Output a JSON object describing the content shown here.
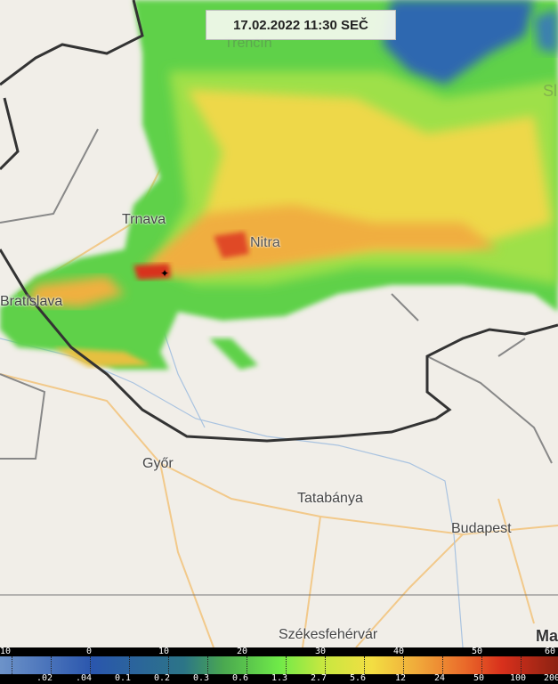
{
  "timestamp": "17.02.2022 11:30 SEČ",
  "cities": {
    "trencin": "Trenčín",
    "trnava": "Trnava",
    "nitra": "Nitra",
    "bratislava": "Bratislava",
    "gyor": "Győr",
    "tatabanya": "Tatabánya",
    "budapest": "Budapest",
    "szekesfehervar": "Székesfehérvár",
    "top_right": "Sl",
    "bottom_right": "Ma"
  },
  "legend": {
    "dbz_labels": [
      "10",
      "0",
      "10",
      "20",
      "30",
      "40",
      "50",
      "60"
    ],
    "rate_labels": [
      ".02",
      ".04",
      "0.1",
      "0.2",
      "0.3",
      "0.6",
      "1.3",
      "2.7",
      "5.6",
      "12",
      "24",
      "50",
      "100",
      "200"
    ],
    "colors": {
      "low": "#6d93c9",
      "blue": "#2a56ad",
      "teal": "#2c7587",
      "green": "#6fea48",
      "yellow": "#f3de42",
      "orange": "#f0a83a",
      "red": "#d8301c",
      "dark_red": "#8c2212"
    }
  }
}
